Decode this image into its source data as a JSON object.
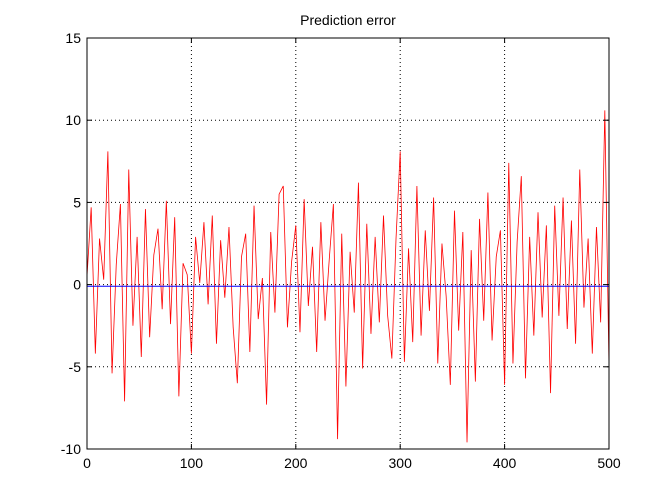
{
  "chart_data": {
    "type": "line",
    "title": "Prediction error",
    "xlabel": "",
    "ylabel": "",
    "xlim": [
      0,
      500
    ],
    "ylim": [
      -10,
      15
    ],
    "xticks": [
      0,
      100,
      200,
      300,
      400,
      500
    ],
    "yticks": [
      -10,
      -5,
      0,
      5,
      10,
      15
    ],
    "xtick_labels": [
      "0",
      "100",
      "200",
      "300",
      "400",
      "500"
    ],
    "ytick_labels": [
      "-10",
      "-5",
      "0",
      "5",
      "10",
      "15"
    ],
    "grid": true,
    "series": [
      {
        "color": "#ff0000",
        "x": [
          0,
          4,
          8,
          12,
          16,
          20,
          24,
          28,
          32,
          36,
          40,
          44,
          48,
          52,
          56,
          60,
          64,
          68,
          72,
          76,
          80,
          84,
          88,
          92,
          96,
          100,
          104,
          108,
          112,
          116,
          120,
          124,
          128,
          132,
          136,
          140,
          144,
          148,
          152,
          156,
          160,
          164,
          168,
          172,
          176,
          180,
          184,
          188,
          192,
          196,
          200,
          204,
          208,
          212,
          216,
          220,
          224,
          228,
          232,
          236,
          240,
          244,
          248,
          252,
          256,
          260,
          264,
          268,
          272,
          276,
          280,
          284,
          288,
          292,
          296,
          300,
          304,
          308,
          312,
          316,
          320,
          324,
          328,
          332,
          336,
          340,
          344,
          348,
          352,
          356,
          360,
          364,
          368,
          372,
          376,
          380,
          384,
          388,
          392,
          396,
          400,
          404,
          408,
          412,
          416,
          420,
          424,
          428,
          432,
          436,
          440,
          444,
          448,
          452,
          456,
          460,
          464,
          468,
          472,
          476,
          480,
          484,
          488,
          492,
          496,
          500
        ],
        "values": [
          0.5,
          4.7,
          -4.2,
          2.8,
          0.3,
          8.1,
          -5.4,
          1.2,
          4.9,
          -7.1,
          7.0,
          -2.5,
          2.9,
          -4.4,
          4.6,
          -3.2,
          1.8,
          3.4,
          -1.5,
          5.1,
          -2.4,
          4.1,
          -6.8,
          1.3,
          0.6,
          -4.2,
          2.9,
          0.1,
          3.8,
          -1.2,
          4.2,
          -3.6,
          2.7,
          -0.8,
          3.5,
          -2.6,
          -6.0,
          1.7,
          3.1,
          -4.1,
          4.8,
          -2.1,
          0.4,
          -7.3,
          3.2,
          -1.7,
          5.5,
          6.0,
          -2.6,
          1.4,
          3.6,
          -2.9,
          5.2,
          -1.3,
          2.3,
          -4.1,
          3.8,
          -2.2,
          1.5,
          4.9,
          -9.4,
          3.1,
          -6.2,
          2.0,
          -1.7,
          6.2,
          -5.1,
          3.7,
          -3.0,
          2.9,
          -2.3,
          4.2,
          -1.9,
          -4.5,
          2.8,
          8.1,
          -4.7,
          2.2,
          -3.5,
          6.0,
          -3.1,
          3.3,
          -1.6,
          5.3,
          -4.8,
          2.5,
          -0.7,
          -6.1,
          4.5,
          -2.8,
          3.2,
          -9.6,
          2.1,
          -5.9,
          4.0,
          -2.2,
          5.6,
          -3.4,
          1.7,
          3.3,
          -6.1,
          7.4,
          -4.8,
          2.6,
          6.6,
          -5.7,
          2.9,
          -3.1,
          4.4,
          -2.0,
          3.6,
          -6.6,
          4.8,
          -1.9,
          5.3,
          -2.7,
          3.9,
          -3.6,
          7.0,
          -1.4,
          2.8,
          -4.2,
          3.5,
          -2.3,
          10.6,
          -5.0
        ],
        "linewidth": 0.8
      },
      {
        "color": "#0000ff",
        "x": [
          0,
          500
        ],
        "values": [
          -0.1,
          -0.1
        ],
        "linewidth": 1.0
      }
    ]
  }
}
